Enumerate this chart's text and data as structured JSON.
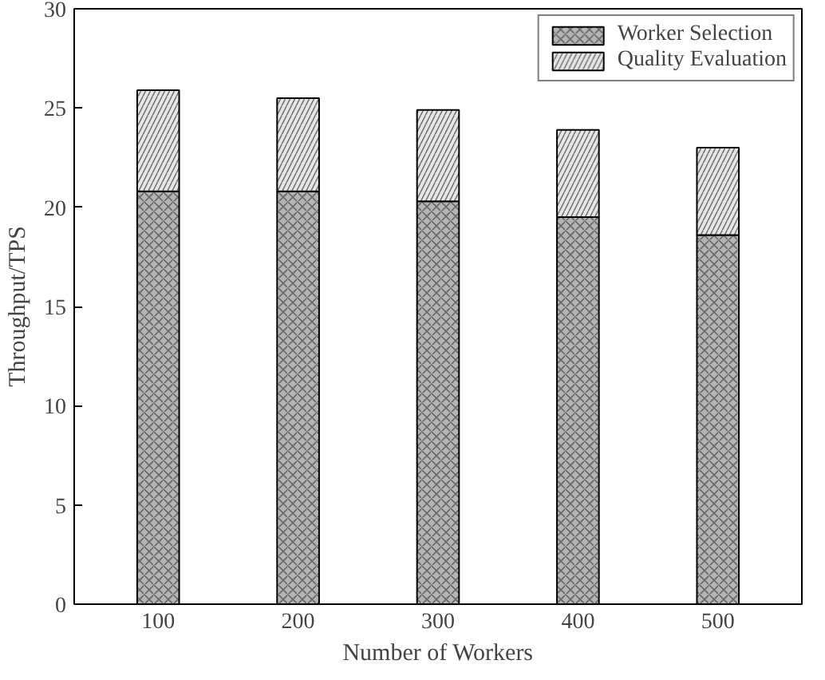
{
  "chart_data": {
    "type": "bar",
    "stacked": true,
    "xlabel": "Number of Workers",
    "ylabel": "Throughput/TPS",
    "categories": [
      "100",
      "200",
      "300",
      "400",
      "500"
    ],
    "series": [
      {
        "name": "Worker Selection",
        "color": "#b4b4b4",
        "values": [
          20.8,
          20.8,
          20.3,
          19.5,
          18.6
        ]
      },
      {
        "name": "Quality Evaluation",
        "color": "#e6e6e6",
        "values": [
          5.1,
          4.7,
          4.6,
          4.4,
          4.4
        ]
      }
    ],
    "ylim": [
      0,
      30
    ],
    "yticks": [
      0,
      5,
      10,
      15,
      20,
      25,
      30
    ],
    "grid": false,
    "legend": "top right"
  }
}
